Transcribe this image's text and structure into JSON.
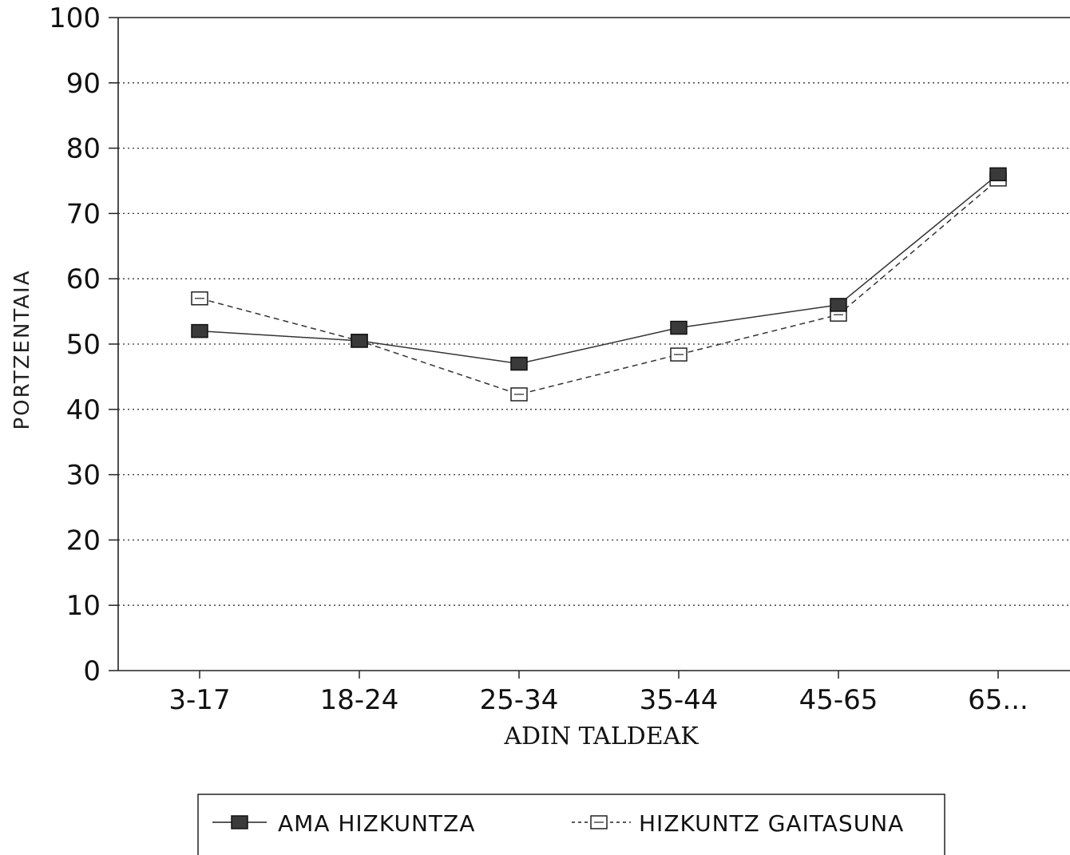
{
  "chart_data": {
    "type": "line",
    "categories": [
      "3-17",
      "18-24",
      "25-34",
      "35-44",
      "45-65",
      "65..."
    ],
    "series": [
      {
        "name": "AMA HIZKUNTZA",
        "values": [
          52,
          50.5,
          47,
          52.5,
          56,
          76
        ],
        "marker": "filled-square",
        "line": "solid",
        "color": "#333333"
      },
      {
        "name": "HIZKUNTZ GAITASUNA",
        "values": [
          57,
          50.5,
          42.3,
          48.4,
          54.5,
          75.2
        ],
        "marker": "open-square",
        "line": "dashed",
        "color": "#333333"
      }
    ],
    "xlabel": "ADIN TALDEAK",
    "ylabel": "PORTZENTAIA",
    "ylim": [
      0,
      100
    ],
    "yticks": [
      "0",
      "10",
      "20",
      "30",
      "40",
      "50",
      "60",
      "70",
      "80",
      "90",
      "100"
    ],
    "grid": "horizontal-dotted",
    "legend_position": "bottom"
  }
}
